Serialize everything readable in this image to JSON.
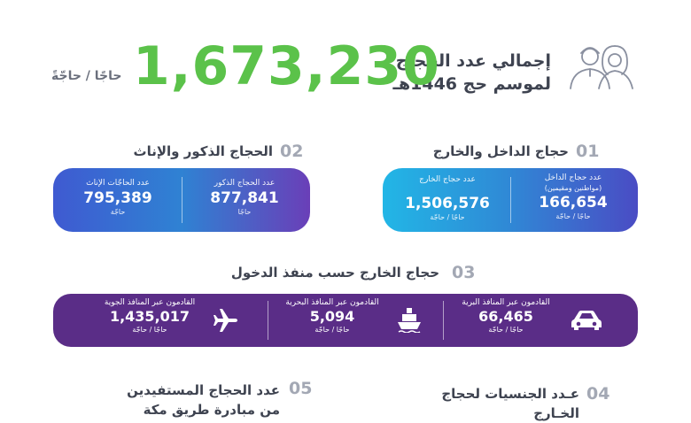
{
  "header": {
    "title_line1": "إجمالي عدد الحجاج",
    "title_line2": "لموسم حج 1446هـ",
    "total": "1,673,230",
    "unit": "حاجًا / حاجّةً",
    "icon": "pilgrims-icon"
  },
  "section1": {
    "number": "01",
    "title": "حجاج الداخل والخارج",
    "items": [
      {
        "label": "عدد حجاج الداخل",
        "sublabel": "(مواطنين ومقيمين)",
        "value": "166,654",
        "unit": "حاجًا / حاجّة"
      },
      {
        "label": "عدد حجاج الخارج",
        "sublabel": "",
        "value": "1,506,576",
        "unit": "حاجًا / حاجّة"
      }
    ]
  },
  "section2": {
    "number": "02",
    "title": "الحجاج الذكور والإناث",
    "items": [
      {
        "label": "عدد الحجاج الذكور",
        "value": "877,841",
        "unit": "حاجًا"
      },
      {
        "label": "عدد الحاجّات الإناث",
        "value": "795,389",
        "unit": "حاجّة"
      }
    ]
  },
  "section3": {
    "number": "03",
    "title": "حجاج الخارج حسب منفذ الدخول",
    "items": [
      {
        "label": "القادمون عبر المنافذ البرية",
        "value": "66,465",
        "unit": "حاجًا / حاجّة",
        "icon": "car-icon"
      },
      {
        "label": "القادمون عبر المنافذ البحرية",
        "value": "5,094",
        "unit": "حاجًا / حاجّة",
        "icon": "ship-icon"
      },
      {
        "label": "القادمون عبر المنافذ الجوية",
        "value": "1,435,017",
        "unit": "حاجًا / حاجّة",
        "icon": "airplane-icon"
      }
    ]
  },
  "section4": {
    "number": "04",
    "title_line1": "عـدد الجنسيات لحجاج",
    "title_line2": "الخـارج"
  },
  "section5": {
    "number": "05",
    "title_line1": "عدد الحجاج المستفيدين",
    "title_line2": "من مبادرة طريق مكة"
  },
  "colors": {
    "green": "#5bc24a",
    "purple": "#5a2d87",
    "blue_start": "#22b6e6",
    "blue_end": "#4a4cc4"
  }
}
